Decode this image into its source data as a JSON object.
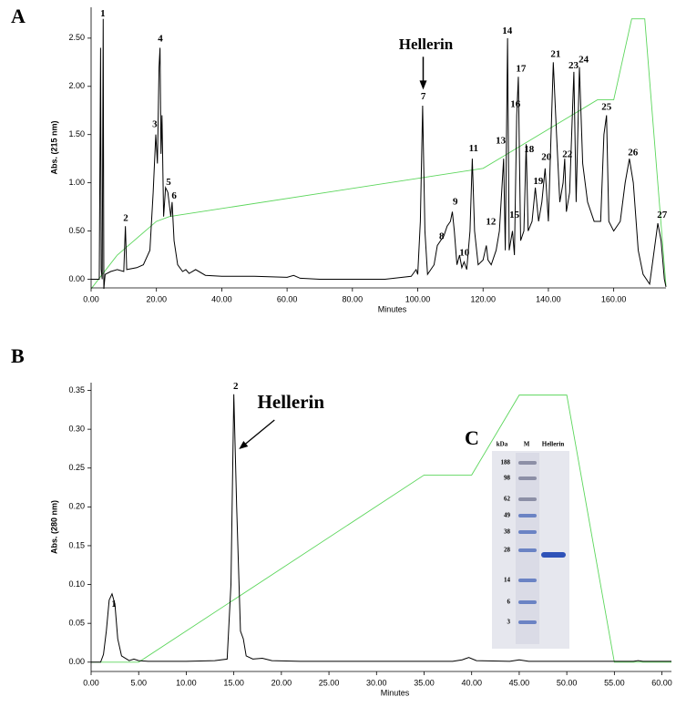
{
  "chart_data": [
    {
      "type": "line",
      "panel": "A",
      "xlabel": "Minutes",
      "ylabel": "Abs. (215 nm)",
      "xlim": [
        0,
        176
      ],
      "ylim": [
        -0.09,
        2.82
      ],
      "xticks": [
        {
          "value": 0,
          "label": "0.00"
        },
        {
          "value": 20,
          "label": "20.00"
        },
        {
          "value": 40,
          "label": "40.00"
        },
        {
          "value": 60,
          "label": "60.00"
        },
        {
          "value": 80,
          "label": "80.00"
        },
        {
          "value": 100,
          "label": "100.00"
        },
        {
          "value": 120,
          "label": "120.00"
        },
        {
          "value": 140,
          "label": "140.00"
        },
        {
          "value": 160,
          "label": "160.00"
        }
      ],
      "yticks": [
        {
          "value": 0,
          "label": "0.00"
        },
        {
          "value": 0.5,
          "label": "0.50"
        },
        {
          "value": 1,
          "label": "1.00"
        },
        {
          "value": 1.5,
          "label": "1.50"
        },
        {
          "value": 2,
          "label": "2.00"
        },
        {
          "value": 2.5,
          "label": "2.50"
        }
      ],
      "series": [
        {
          "color": "#000000",
          "x": [
            0,
            2.5,
            2.9,
            3.1,
            3.4,
            3.7,
            3.9,
            4.3,
            6,
            8,
            10,
            10.5,
            10.9,
            14,
            16,
            18,
            19,
            19.8,
            20.3,
            20.8,
            21.1,
            21.4,
            21.7,
            22.2,
            22.8,
            23.5,
            24.4,
            24.8,
            25.4,
            26.5,
            28,
            29,
            30,
            32,
            35,
            40,
            50,
            60,
            62,
            64,
            70,
            80,
            90,
            98,
            99.5,
            100,
            100.8,
            101.5,
            102.2,
            103,
            105,
            106,
            107,
            108,
            109,
            110,
            110.6,
            111.2,
            112,
            112.8,
            113.5,
            114.2,
            115,
            116,
            116.7,
            117.4,
            118.5,
            120,
            121,
            121.5,
            122.5,
            124,
            125,
            126.3,
            126.8,
            127.5,
            128,
            129,
            129.6,
            130.3,
            130.8,
            131.5,
            132.5,
            133.2,
            133.8,
            135,
            136,
            137,
            138,
            139,
            140,
            141.5,
            142.5,
            143.5,
            144.5,
            145,
            145.5,
            146.5,
            147.8,
            148.5,
            149.5,
            150.5,
            152,
            154,
            156,
            157,
            157.8,
            158.5,
            160,
            162,
            163.5,
            164.8,
            166,
            167.5,
            169,
            171,
            172,
            173.5,
            174.5,
            175.5,
            176
          ],
          "values": [
            0,
            0,
            2.4,
            0.1,
            0,
            2.7,
            -0.1,
            0.05,
            0.08,
            0.1,
            0.08,
            0.55,
            0.1,
            0.12,
            0.15,
            0.3,
            0.9,
            1.5,
            1.2,
            2.2,
            2.4,
            1.3,
            1.7,
            0.65,
            0.95,
            0.9,
            0.65,
            0.8,
            0.4,
            0.15,
            0.08,
            0.1,
            0.06,
            0.1,
            0.04,
            0.03,
            0.03,
            0.02,
            0.04,
            0.01,
            0,
            0,
            0,
            0.03,
            0.1,
            0.05,
            0.6,
            1.8,
            0.5,
            0.05,
            0.15,
            0.35,
            0.4,
            0.45,
            0.55,
            0.6,
            0.7,
            0.5,
            0.15,
            0.25,
            0.12,
            0.18,
            0.1,
            0.5,
            1.25,
            0.5,
            0.15,
            0.2,
            0.35,
            0.2,
            0.15,
            0.3,
            0.5,
            1.25,
            0.3,
            2.5,
            0.3,
            0.5,
            0.25,
            1.7,
            2.1,
            0.4,
            0.5,
            1.4,
            0.5,
            0.6,
            0.95,
            0.6,
            0.8,
            1.15,
            0.6,
            2.25,
            1.5,
            0.8,
            1,
            1.25,
            0.7,
            0.9,
            2.15,
            0.8,
            2.2,
            1.2,
            0.8,
            0.6,
            0.6,
            1.5,
            1.7,
            0.6,
            0.5,
            0.6,
            1,
            1.25,
            1,
            0.3,
            0.05,
            -0.05,
            0.2,
            0.58,
            0.4,
            0,
            -0.08
          ]
        },
        {
          "color": "#5cd65c",
          "x": [
            0,
            8,
            20,
            24,
            120,
            125,
            155,
            160,
            165.5,
            169.5,
            176
          ],
          "values": [
            -0.1,
            0.25,
            0.6,
            0.65,
            1.15,
            1.25,
            1.86,
            1.86,
            2.7,
            2.7,
            -0.07
          ]
        }
      ],
      "peaks": [
        {
          "label": "1",
          "x": 3.6,
          "y": 2.75
        },
        {
          "label": "2",
          "x": 10.6,
          "y": 0.63
        },
        {
          "label": "3",
          "x": 19.5,
          "y": 1.6
        },
        {
          "label": "4",
          "x": 21.2,
          "y": 2.49
        },
        {
          "label": "5",
          "x": 23.7,
          "y": 1.0
        },
        {
          "label": "6",
          "x": 25.4,
          "y": 0.86
        },
        {
          "label": "7",
          "x": 101.7,
          "y": 1.89
        },
        {
          "label": "8",
          "x": 107.3,
          "y": 0.44
        },
        {
          "label": "9",
          "x": 111.5,
          "y": 0.8
        },
        {
          "label": "10",
          "x": 114.3,
          "y": 0.27
        },
        {
          "label": "11",
          "x": 117.1,
          "y": 1.35
        },
        {
          "label": "12",
          "x": 122.4,
          "y": 0.59
        },
        {
          "label": "13",
          "x": 125.4,
          "y": 1.43
        },
        {
          "label": "14",
          "x": 127.4,
          "y": 2.57
        },
        {
          "label": "15",
          "x": 129.6,
          "y": 0.66
        },
        {
          "label": "16",
          "x": 129.9,
          "y": 1.81
        },
        {
          "label": "17",
          "x": 131.6,
          "y": 2.18
        },
        {
          "label": "18",
          "x": 134.1,
          "y": 1.34
        },
        {
          "label": "19",
          "x": 136.9,
          "y": 1.01
        },
        {
          "label": "20",
          "x": 139.4,
          "y": 1.26
        },
        {
          "label": "21",
          "x": 142.2,
          "y": 2.33
        },
        {
          "label": "22",
          "x": 145.8,
          "y": 1.29
        },
        {
          "label": "23",
          "x": 147.7,
          "y": 2.21
        },
        {
          "label": "24",
          "x": 150.8,
          "y": 2.27
        },
        {
          "label": "25",
          "x": 157.8,
          "y": 1.78
        },
        {
          "label": "26",
          "x": 165.9,
          "y": 1.31
        },
        {
          "label": "27",
          "x": 174.8,
          "y": 0.66
        }
      ],
      "annotation": {
        "text": "Hellerin",
        "x": 102.5,
        "y": 2.42
      }
    },
    {
      "type": "line",
      "panel": "B",
      "xlabel": "Minutes",
      "ylabel": "Abs. (280 nm)",
      "xlim": [
        0,
        61
      ],
      "ylim": [
        -0.012,
        0.36
      ],
      "xticks": [
        {
          "value": 0,
          "label": "0.00"
        },
        {
          "value": 5,
          "label": "5.00"
        },
        {
          "value": 10,
          "label": "10.00"
        },
        {
          "value": 15,
          "label": "15.00"
        },
        {
          "value": 20,
          "label": "20.00"
        },
        {
          "value": 25,
          "label": "25.00"
        },
        {
          "value": 30,
          "label": "30.00"
        },
        {
          "value": 35,
          "label": "35.00"
        },
        {
          "value": 40,
          "label": "40.00"
        },
        {
          "value": 45,
          "label": "45.00"
        },
        {
          "value": 50,
          "label": "50.00"
        },
        {
          "value": 55,
          "label": "55.00"
        },
        {
          "value": 60,
          "label": "60.00"
        }
      ],
      "yticks": [
        {
          "value": 0,
          "label": "0.00"
        },
        {
          "value": 0.05,
          "label": "0.05"
        },
        {
          "value": 0.1,
          "label": "0.10"
        },
        {
          "value": 0.15,
          "label": "0.15"
        },
        {
          "value": 0.2,
          "label": "0.20"
        },
        {
          "value": 0.25,
          "label": "0.25"
        },
        {
          "value": 0.3,
          "label": "0.30"
        },
        {
          "value": 0.35,
          "label": "0.35"
        }
      ],
      "series": [
        {
          "color": "#000000",
          "x": [
            0,
            1,
            1.3,
            1.6,
            1.9,
            2.2,
            2.5,
            2.8,
            3.2,
            4,
            4.5,
            5,
            6,
            10,
            13,
            14.3,
            14.7,
            15,
            15.3,
            15.7,
            16,
            16.3,
            17,
            18,
            19,
            22,
            30,
            38,
            39,
            39.7,
            40.5,
            44,
            45,
            46,
            57,
            57.5,
            58,
            61
          ],
          "values": [
            0,
            0,
            0.01,
            0.04,
            0.08,
            0.088,
            0.075,
            0.03,
            0.008,
            0.002,
            0.004,
            0.002,
            0.001,
            0.001,
            0.002,
            0.004,
            0.1,
            0.345,
            0.2,
            0.04,
            0.03,
            0.008,
            0.004,
            0.005,
            0.002,
            0.001,
            0.001,
            0.001,
            0.003,
            0.006,
            0.002,
            0.001,
            0.003,
            0.001,
            0.001,
            0.002,
            0.001,
            0.001
          ]
        },
        {
          "color": "#5cd65c",
          "x": [
            0,
            5,
            35,
            40,
            45,
            50,
            55,
            61
          ],
          "values": [
            0,
            0,
            0.241,
            0.241,
            0.344,
            0.344,
            0,
            0
          ]
        }
      ],
      "peaks": [
        {
          "label": "1",
          "x": 2.4,
          "y": 0.074
        },
        {
          "label": "2",
          "x": 15.2,
          "y": 0.355
        }
      ],
      "annotation": {
        "text": "Hellerin",
        "x": 21.0,
        "y": 0.333
      },
      "gel": {
        "label": "C",
        "columns": [
          "kDa",
          "M",
          "Hellerin"
        ],
        "markers": [
          188,
          98,
          62,
          49,
          38,
          28,
          14,
          6,
          3
        ]
      }
    }
  ]
}
